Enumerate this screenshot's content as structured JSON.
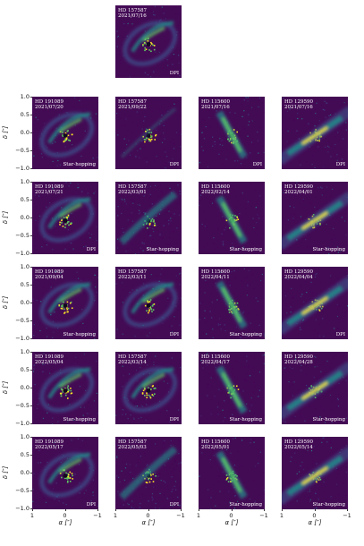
{
  "figure": {
    "colormap_colors": [
      "#440154",
      "#3b528b",
      "#21918c",
      "#5ec962",
      "#fde725"
    ],
    "y_label": "δ [″]",
    "x_label": "α [″]",
    "y_ticks": [
      "1.0",
      "0.5",
      "0.0",
      "−0.5",
      "−1.0"
    ],
    "x_ticks": [
      "1",
      "0",
      "−1"
    ],
    "top_panel": {
      "target": "HD 157587",
      "date": "2021/07/16",
      "mode": "DPI",
      "morph": "ring",
      "seed": 3
    },
    "rows": [
      [
        {
          "target": "HD 191089",
          "date": "2021/07/20",
          "mode": "Star-hopping",
          "morph": "ring",
          "seed": 11
        },
        {
          "target": "HD 157587",
          "date": "2021/09/22",
          "mode": "DPI",
          "morph": "faint",
          "seed": 12
        },
        {
          "target": "HD 115600",
          "date": "2021/07/16",
          "mode": "DPI",
          "morph": "steep",
          "seed": 13
        },
        {
          "target": "HD 129590",
          "date": "2021/07/16",
          "mode": "DPI",
          "morph": "edge",
          "seed": 14
        }
      ],
      [
        {
          "target": "HD 191089",
          "date": "2021/07/21",
          "mode": "DPI",
          "morph": "ring",
          "seed": 21
        },
        {
          "target": "HD 157587",
          "date": "2022/03/01",
          "mode": "Star-hopping",
          "morph": "noisy",
          "seed": 22
        },
        {
          "target": "HD 115600",
          "date": "2022/02/14",
          "mode": "Star-hopping",
          "morph": "steep",
          "seed": 23
        },
        {
          "target": "HD 129590",
          "date": "2022/04/01",
          "mode": "Star-hopping",
          "morph": "edge",
          "seed": 24
        }
      ],
      [
        {
          "target": "HD 191089",
          "date": "2021/09/04",
          "mode": "Star-hopping",
          "morph": "ring",
          "seed": 31
        },
        {
          "target": "HD 157587",
          "date": "2022/03/11",
          "mode": "DPI",
          "morph": "arc",
          "seed": 32
        },
        {
          "target": "HD 115600",
          "date": "2022/04/11",
          "mode": "Star-hopping",
          "morph": "steep",
          "seed": 33
        },
        {
          "target": "HD 129590",
          "date": "2022/04/04",
          "mode": "DPI",
          "morph": "edge",
          "seed": 34
        }
      ],
      [
        {
          "target": "HD 191089",
          "date": "2022/05/04",
          "mode": "Star-hopping",
          "morph": "ring",
          "seed": 41
        },
        {
          "target": "HD 157587",
          "date": "2022/03/14",
          "mode": "DPI",
          "morph": "arc",
          "seed": 42
        },
        {
          "target": "HD 115600",
          "date": "2022/04/17",
          "mode": "Star-hopping",
          "morph": "steep",
          "seed": 43
        },
        {
          "target": "HD 129590",
          "date": "2022/04/28",
          "mode": "Star-hopping",
          "morph": "edge",
          "seed": 44
        }
      ],
      [
        {
          "target": "HD 191089",
          "date": "2022/05/17",
          "mode": "DPI",
          "morph": "ring",
          "seed": 51
        },
        {
          "target": "HD 157587",
          "date": "2022/05/03",
          "mode": "DPI",
          "morph": "noisy",
          "seed": 52
        },
        {
          "target": "HD 115600",
          "date": "2022/05/01",
          "mode": "Star-hopping",
          "morph": "steep",
          "seed": 53
        },
        {
          "target": "HD 129590",
          "date": "2022/05/14",
          "mode": "Star-hopping",
          "morph": "edge",
          "seed": 54
        }
      ]
    ]
  }
}
